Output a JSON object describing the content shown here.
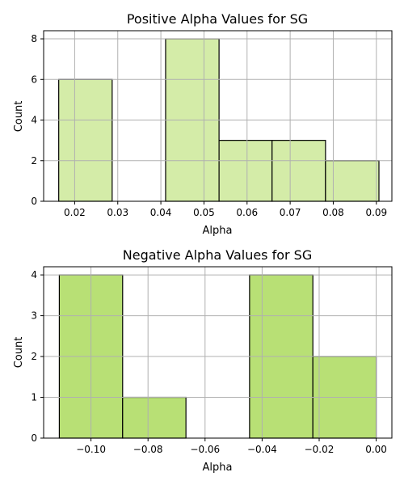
{
  "colors": {
    "grid": "#b0b0b0",
    "edge": "#000000"
  },
  "chart_data": [
    {
      "type": "bar",
      "title": "Positive Alpha Values for SG",
      "xlabel": "Alpha",
      "ylabel": "Count",
      "xlim": [
        0.0128,
        0.0936
      ],
      "ylim": [
        0,
        8.4
      ],
      "grid": true,
      "bar_color": "#d4eca8",
      "xticks": [
        "0.02",
        "0.03",
        "0.04",
        "0.05",
        "0.06",
        "0.07",
        "0.08",
        "0.09"
      ],
      "xtick_values": [
        0.02,
        0.03,
        0.04,
        0.05,
        0.06,
        0.07,
        0.08,
        0.09
      ],
      "yticks": [
        "0",
        "2",
        "4",
        "6",
        "8"
      ],
      "ytick_values": [
        0,
        2,
        4,
        6,
        8
      ],
      "bins": [
        {
          "x0": 0.0163,
          "x1": 0.0287,
          "count": 6
        },
        {
          "x0": 0.0287,
          "x1": 0.0411,
          "count": 0
        },
        {
          "x0": 0.0411,
          "x1": 0.0535,
          "count": 8
        },
        {
          "x0": 0.0535,
          "x1": 0.0658,
          "count": 3
        },
        {
          "x0": 0.0658,
          "x1": 0.0782,
          "count": 3
        },
        {
          "x0": 0.0782,
          "x1": 0.0906,
          "count": 2
        }
      ]
    },
    {
      "type": "bar",
      "title": "Negative Alpha Values for SG",
      "xlabel": "Alpha",
      "ylabel": "Count",
      "xlim": [
        -0.1166,
        0.0055
      ],
      "ylim": [
        0,
        4.2
      ],
      "grid": true,
      "bar_color": "#b8e075",
      "xticks": [
        "−0.10",
        "−0.08",
        "−0.06",
        "−0.04",
        "−0.02",
        "0.00"
      ],
      "xtick_values": [
        -0.1,
        -0.08,
        -0.06,
        -0.04,
        -0.02,
        0.0
      ],
      "yticks": [
        "0",
        "1",
        "2",
        "3",
        "4"
      ],
      "ytick_values": [
        0,
        1,
        2,
        3,
        4
      ],
      "bins": [
        {
          "x0": -0.1111,
          "x1": -0.0889,
          "count": 4
        },
        {
          "x0": -0.0889,
          "x1": -0.0667,
          "count": 1
        },
        {
          "x0": -0.0667,
          "x1": -0.0444,
          "count": 0
        },
        {
          "x0": -0.0444,
          "x1": -0.0222,
          "count": 4
        },
        {
          "x0": -0.0222,
          "x1": 0.0,
          "count": 2
        }
      ]
    }
  ]
}
